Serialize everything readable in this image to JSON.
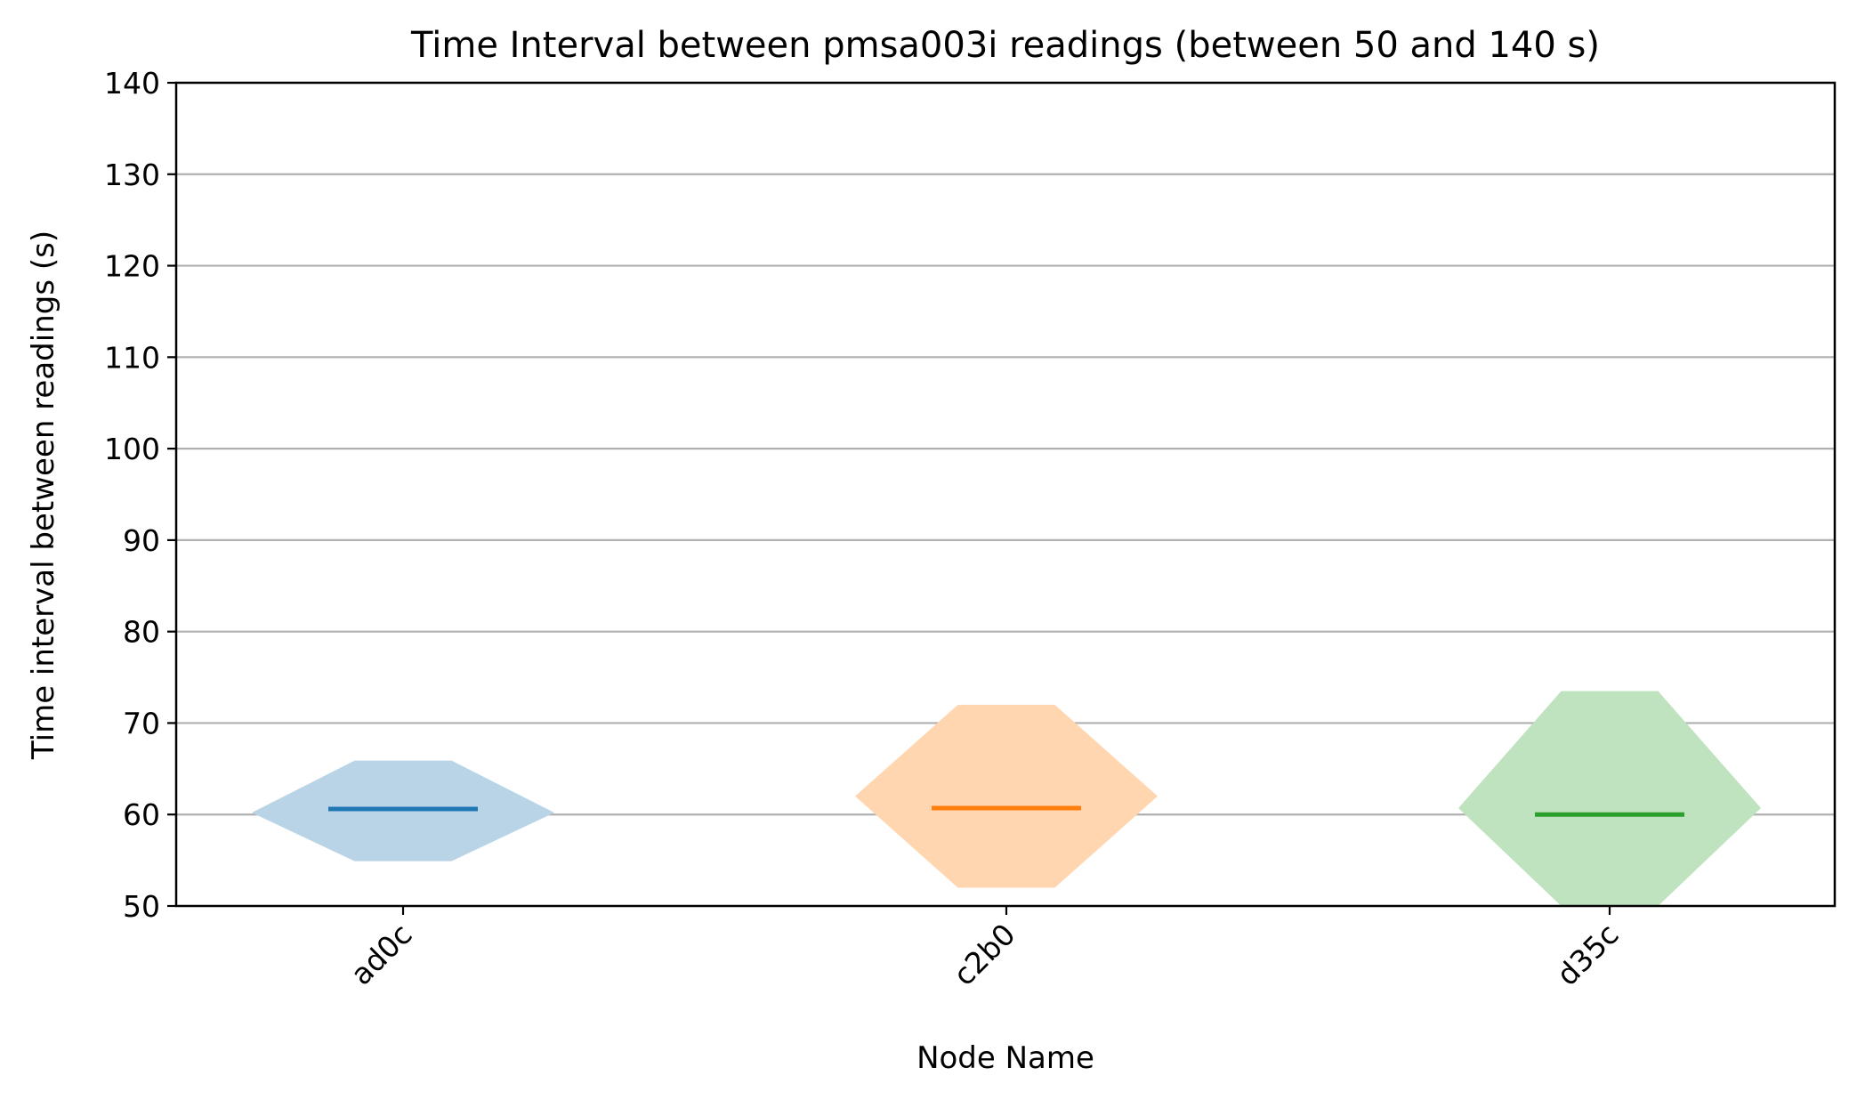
{
  "chart_data": {
    "type": "violin",
    "title": "Time Interval between pmsa003i readings (between 50 and 140 s)",
    "xlabel": "Node Name",
    "ylabel": "Time interval between readings (s)",
    "ylim": [
      50,
      140
    ],
    "yticks": [
      50,
      60,
      70,
      80,
      90,
      100,
      110,
      120,
      130,
      140
    ],
    "grid": "horizontal",
    "categories": [
      "ad0c",
      "c2b0",
      "d35c"
    ],
    "series": [
      {
        "category": "ad0c",
        "color": "#1f77b4",
        "fill": "#b9d3e7",
        "median": 60.6,
        "min": 54.9,
        "max": 65.9,
        "widest_at": 60.2,
        "relative_width": 1.0
      },
      {
        "category": "c2b0",
        "color": "#ff7f0e",
        "fill": "#ffd6b0",
        "median": 60.7,
        "min": 52.0,
        "max": 72.0,
        "widest_at": 62.0,
        "relative_width": 1.0
      },
      {
        "category": "d35c",
        "color": "#2ca02c",
        "fill": "#bfe3bf",
        "median": 60.0,
        "min": 50.0,
        "max": 73.5,
        "widest_at": 60.7,
        "relative_width": 1.0
      }
    ]
  }
}
